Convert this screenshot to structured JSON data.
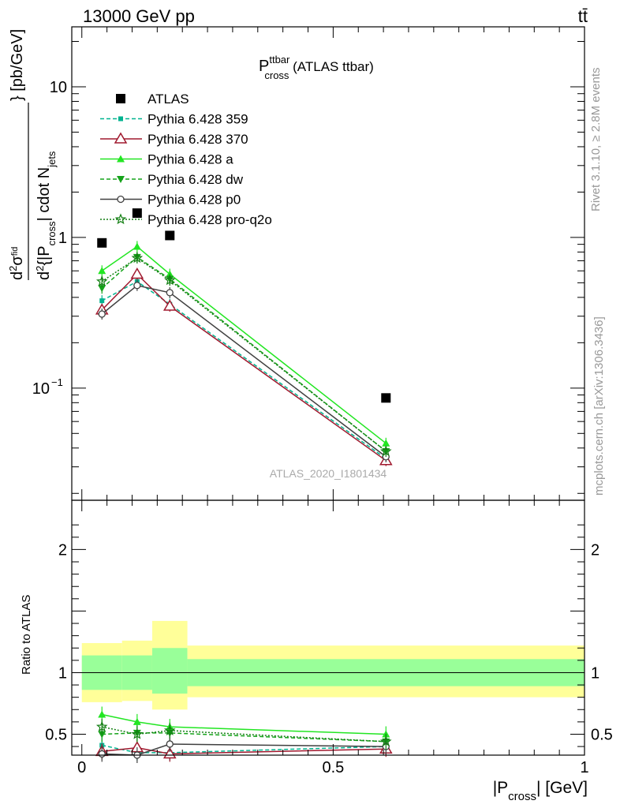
{
  "header": {
    "left": "13000 GeV pp",
    "right": "tt̄"
  },
  "side_labels": {
    "rivet": "Rivet 3.1.10, ≥ 2.8M events",
    "mcplots": "mcplots.cern.ch [arXiv:1306.3436]"
  },
  "chart_data": {
    "type": "scatter",
    "title": {
      "main": "P",
      "sup": "ttbar",
      "sub": "cross",
      "rest": " (ATLAS ttbar)"
    },
    "analysis_id": "ATLAS_2020_I1801434",
    "ylabel_top": "} [pb/GeV]",
    "ylabel_ratio": "Ratio to ATLAS",
    "xlabel": "|P",
    "xlabel_sub": "cross",
    "xlabel_rest": "| [GeV]",
    "xlim": [
      -0.02,
      1.0
    ],
    "ylim_main": [
      0.018,
      25
    ],
    "ylim_ratio": [
      0.33,
      2.4
    ],
    "yscale_main": "log",
    "x_ticks": [
      {
        "v": 0,
        "label": "0"
      },
      {
        "v": 0.5,
        "label": "0.5"
      },
      {
        "v": 1,
        "label": "1"
      }
    ],
    "y_ticks_main": [
      {
        "v": 10,
        "label": "10"
      },
      {
        "v": 1,
        "label": "1"
      },
      {
        "v": 0.1,
        "label": "10",
        "sup": "−1"
      }
    ],
    "y_ticks_ratio": [
      {
        "v": 2,
        "label": "2"
      },
      {
        "v": 1,
        "label": "1"
      },
      {
        "v": 0.5,
        "label": "0.5"
      }
    ],
    "bins": [
      {
        "lo": 0.0,
        "hi": 0.08
      },
      {
        "lo": 0.08,
        "hi": 0.14
      },
      {
        "lo": 0.14,
        "hi": 0.21
      },
      {
        "lo": 0.21,
        "hi": 1.0
      }
    ],
    "data": {
      "name": "ATLAS",
      "color": "#000000",
      "x": [
        0.04,
        0.11,
        0.175,
        0.605
      ],
      "y": [
        0.92,
        1.45,
        1.03,
        0.086
      ],
      "band_inner": [
        [
          0.86,
          1.14
        ],
        [
          0.86,
          1.14
        ],
        [
          0.83,
          1.2
        ],
        [
          0.89,
          1.11
        ]
      ],
      "band_outer": [
        [
          0.76,
          1.24
        ],
        [
          0.77,
          1.26
        ],
        [
          0.7,
          1.42
        ],
        [
          0.8,
          1.22
        ]
      ]
    },
    "series": [
      {
        "name": "Pythia 6.428 359",
        "color": "#00b38f",
        "dash": "5,3",
        "marker": "square-small",
        "y": [
          0.38,
          0.51,
          0.36,
          0.034
        ],
        "ratio": [
          0.41,
          0.35,
          0.35,
          0.4
        ]
      },
      {
        "name": "Pythia 6.428 370",
        "color": "#a0192e",
        "dash": "",
        "marker": "triangle-open",
        "y": [
          0.33,
          0.57,
          0.35,
          0.033
        ],
        "ratio": [
          0.36,
          0.39,
          0.34,
          0.38
        ]
      },
      {
        "name": "Pythia 6.428 a",
        "color": "#22e622",
        "dash": "",
        "marker": "triangle-filled",
        "y": [
          0.6,
          0.87,
          0.57,
          0.043
        ],
        "ratio": [
          0.66,
          0.6,
          0.56,
          0.5
        ]
      },
      {
        "name": "Pythia 6.428 dw",
        "color": "#15a31a",
        "dash": "5,3",
        "marker": "triangle-down",
        "y": [
          0.46,
          0.74,
          0.53,
          0.038
        ],
        "ratio": [
          0.5,
          0.51,
          0.51,
          0.44
        ]
      },
      {
        "name": "Pythia 6.428 p0",
        "color": "#404040",
        "dash": "",
        "marker": "circle-open",
        "y": [
          0.31,
          0.48,
          0.43,
          0.035
        ],
        "ratio": [
          0.34,
          0.33,
          0.42,
          0.4
        ]
      },
      {
        "name": "Pythia 6.428 pro-q2o",
        "color": "#137f13",
        "dash": "2,2",
        "marker": "star",
        "y": [
          0.51,
          0.73,
          0.52,
          0.038
        ],
        "ratio": [
          0.56,
          0.5,
          0.53,
          0.44
        ]
      }
    ]
  }
}
